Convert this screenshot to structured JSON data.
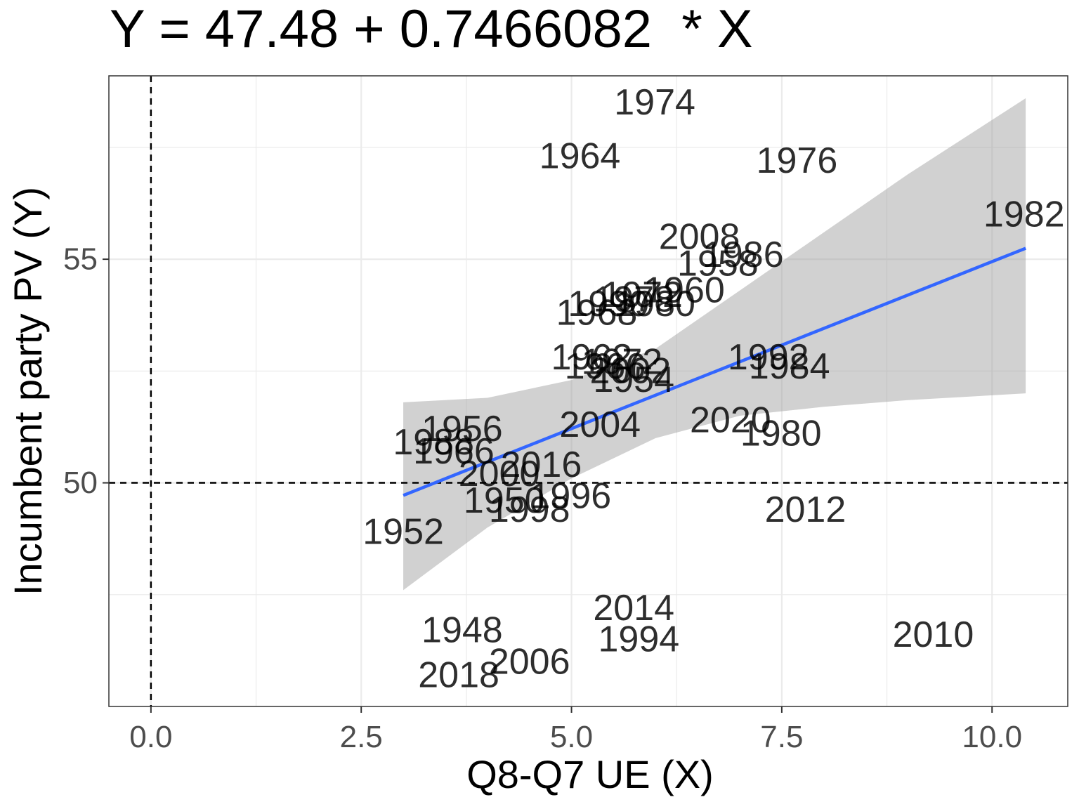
{
  "chart_data": {
    "type": "scatter",
    "title": "Y = 47.48 + 0.7466082  * X",
    "xlabel": "Q8-Q7 UE (X)",
    "ylabel": "Incumbent party PV (Y)",
    "xlim": [
      -0.5,
      10.9
    ],
    "ylim": [
      45.0,
      59.1
    ],
    "x_ticks": [
      0.0,
      2.5,
      5.0,
      7.5,
      10.0
    ],
    "x_tick_labels": [
      "0.0",
      "2.5",
      "5.0",
      "7.5",
      "10.0"
    ],
    "y_ticks": [
      50,
      55
    ],
    "y_tick_labels": [
      "50",
      "55"
    ],
    "grid": true,
    "reference_lines": {
      "x": 0,
      "y": 50
    },
    "fit": {
      "intercept": 47.48,
      "slope": 0.7466082,
      "x_range": [
        3.0,
        10.4
      ],
      "confidence_band": [
        {
          "x": 3.0,
          "lower": 47.6,
          "upper": 51.8
        },
        {
          "x": 4.0,
          "lower": 49.0,
          "upper": 51.9
        },
        {
          "x": 5.0,
          "lower": 50.1,
          "upper": 52.3
        },
        {
          "x": 6.0,
          "lower": 51.0,
          "upper": 53.0
        },
        {
          "x": 7.0,
          "lower": 51.5,
          "upper": 54.3
        },
        {
          "x": 8.0,
          "lower": 51.7,
          "upper": 55.6
        },
        {
          "x": 9.0,
          "lower": 51.85,
          "upper": 56.9
        },
        {
          "x": 10.4,
          "lower": 52.0,
          "upper": 58.6
        }
      ]
    },
    "colors": {
      "fit_line": "#3366FF",
      "band": "#999999",
      "grid": "#EBEBEB",
      "label": "#000000"
    },
    "points": [
      {
        "label": "1974",
        "x": 5.99,
        "y": 58.5
      },
      {
        "label": "1964",
        "x": 5.1,
        "y": 57.3
      },
      {
        "label": "1976",
        "x": 7.68,
        "y": 57.2
      },
      {
        "label": "1982",
        "x": 10.38,
        "y": 56.0
      },
      {
        "label": "2008",
        "x": 6.52,
        "y": 55.5
      },
      {
        "label": "1986",
        "x": 7.04,
        "y": 55.1
      },
      {
        "label": "1958",
        "x": 6.74,
        "y": 54.9
      },
      {
        "label": "1960",
        "x": 6.34,
        "y": 54.3
      },
      {
        "label": "1972",
        "x": 5.84,
        "y": 54.2
      },
      {
        "label": "1978",
        "x": 5.74,
        "y": 54.1
      },
      {
        "label": "1980",
        "x": 5.99,
        "y": 54.0
      },
      {
        "label": "1990",
        "x": 5.44,
        "y": 54.0
      },
      {
        "label": "1968",
        "x": 5.3,
        "y": 53.8
      },
      {
        "label": "1962",
        "x": 5.24,
        "y": 52.8
      },
      {
        "label": "1972",
        "x": 5.6,
        "y": 52.7
      },
      {
        "label": "1966",
        "x": 5.4,
        "y": 52.6
      },
      {
        "label": "1992",
        "x": 7.34,
        "y": 52.8
      },
      {
        "label": "1984",
        "x": 7.59,
        "y": 52.6
      },
      {
        "label": "2002",
        "x": 5.7,
        "y": 52.5
      },
      {
        "label": "1954",
        "x": 5.74,
        "y": 52.3
      },
      {
        "label": "1956",
        "x": 3.7,
        "y": 51.2
      },
      {
        "label": "2004",
        "x": 5.34,
        "y": 51.3
      },
      {
        "label": "2020",
        "x": 6.89,
        "y": 51.4
      },
      {
        "label": "1980",
        "x": 7.49,
        "y": 51.1
      },
      {
        "label": "1988",
        "x": 3.36,
        "y": 50.9
      },
      {
        "label": "1966",
        "x": 3.6,
        "y": 50.7
      },
      {
        "label": "2016",
        "x": 4.64,
        "y": 50.4
      },
      {
        "label": "2000",
        "x": 4.14,
        "y": 50.2
      },
      {
        "label": "1950",
        "x": 4.2,
        "y": 49.6
      },
      {
        "label": "1996",
        "x": 4.99,
        "y": 49.7
      },
      {
        "label": "1998",
        "x": 4.5,
        "y": 49.4
      },
      {
        "label": "2012",
        "x": 7.78,
        "y": 49.4
      },
      {
        "label": "1952",
        "x": 3.0,
        "y": 48.9
      },
      {
        "label": "2014",
        "x": 5.74,
        "y": 47.2
      },
      {
        "label": "1948",
        "x": 3.7,
        "y": 46.7
      },
      {
        "label": "1994",
        "x": 5.8,
        "y": 46.5
      },
      {
        "label": "2010",
        "x": 9.3,
        "y": 46.6
      },
      {
        "label": "2006",
        "x": 4.5,
        "y": 46.0
      },
      {
        "label": "2018",
        "x": 3.66,
        "y": 45.7
      }
    ]
  }
}
